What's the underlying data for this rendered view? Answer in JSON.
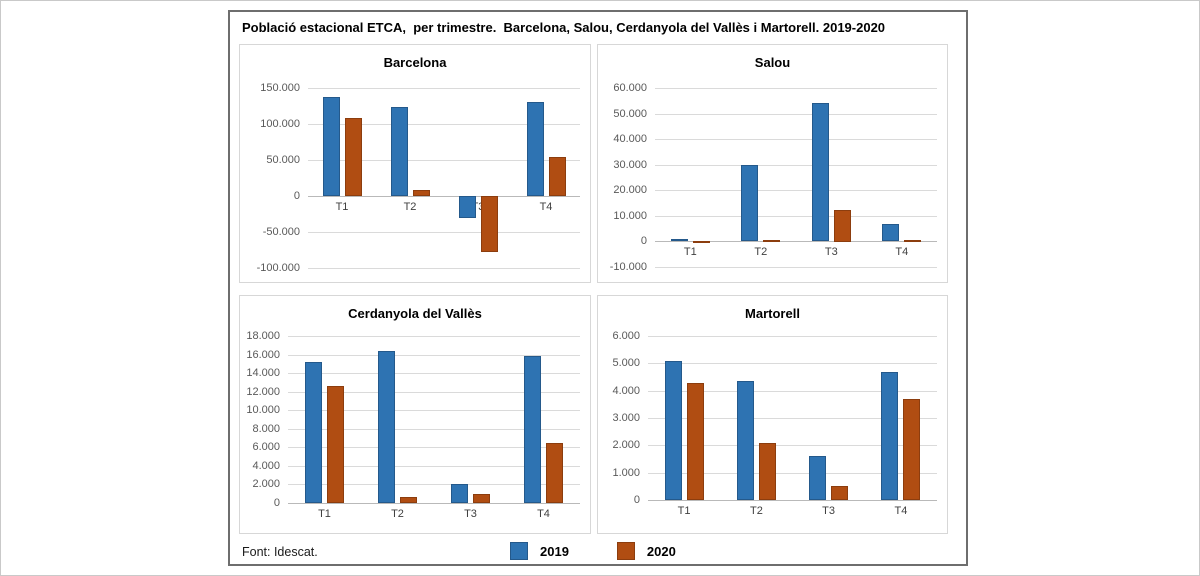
{
  "title": "Població estacional ETCA,  per trimestre.  Barcelona, Salou, Cerdanyola del Vallès i Martorell. 2019-2020",
  "footer": {
    "source": "Font: Idescat."
  },
  "legend": [
    {
      "label": "2019",
      "color": "#2E73B2",
      "border": "#24598B"
    },
    {
      "label": "2020",
      "color": "#B04D12",
      "border": "#8C3D0E"
    }
  ],
  "chart_data": [
    {
      "type": "bar",
      "title": "Barcelona",
      "categories": [
        "T1",
        "T2",
        "T3",
        "T4"
      ],
      "series": [
        {
          "name": "2019",
          "values": [
            137000,
            124000,
            -30000,
            131000
          ]
        },
        {
          "name": "2020",
          "values": [
            109000,
            9000,
            -78000,
            54000
          ]
        }
      ],
      "ylim": [
        -100000,
        150000
      ],
      "ystep": 50000,
      "yticks": [
        "150.000",
        "100.000",
        "50.000",
        "0",
        "-50.000",
        "-100.000"
      ],
      "grid": true,
      "legend_position": "bottom"
    },
    {
      "type": "bar",
      "title": "Salou",
      "categories": [
        "T1",
        "T2",
        "T3",
        "T4"
      ],
      "series": [
        {
          "name": "2019",
          "values": [
            1000,
            30000,
            54000,
            6800
          ]
        },
        {
          "name": "2020",
          "values": [
            200,
            700,
            12500,
            700
          ]
        }
      ],
      "ylim": [
        -10000,
        60000
      ],
      "ystep": 10000,
      "yticks": [
        "60.000",
        "50.000",
        "40.000",
        "30.000",
        "20.000",
        "10.000",
        "0",
        "-10.000"
      ],
      "grid": true,
      "legend_position": "bottom"
    },
    {
      "type": "bar",
      "title": "Cerdanyola del Vallès",
      "categories": [
        "T1",
        "T2",
        "T3",
        "T4"
      ],
      "series": [
        {
          "name": "2019",
          "values": [
            15200,
            16400,
            2000,
            15800
          ]
        },
        {
          "name": "2020",
          "values": [
            12600,
            700,
            1000,
            6500
          ]
        }
      ],
      "ylim": [
        0,
        18000
      ],
      "ystep": 2000,
      "yticks": [
        "18.000",
        "16.000",
        "14.000",
        "12.000",
        "10.000",
        "8.000",
        "6.000",
        "4.000",
        "2.000",
        "0"
      ],
      "grid": true,
      "legend_position": "bottom"
    },
    {
      "type": "bar",
      "title": "Martorell",
      "categories": [
        "T1",
        "T2",
        "T3",
        "T4"
      ],
      "series": [
        {
          "name": "2019",
          "values": [
            5100,
            4350,
            1600,
            4700
          ]
        },
        {
          "name": "2020",
          "values": [
            4300,
            2100,
            500,
            3700
          ]
        }
      ],
      "ylim": [
        0,
        6000
      ],
      "ystep": 1000,
      "yticks": [
        "6.000",
        "5.000",
        "4.000",
        "3.000",
        "2.000",
        "1.000",
        "0"
      ],
      "grid": true,
      "legend_position": "bottom"
    }
  ]
}
